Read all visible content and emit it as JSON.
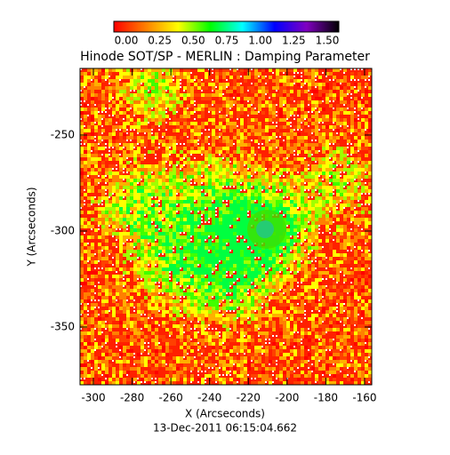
{
  "chart_data": {
    "type": "image",
    "title": "Hinode SOT/SP - MERLIN : Damping Parameter",
    "xlabel": "X (Arcseconds)",
    "ylabel": "Y (Arcseconds)",
    "footer": "13-Dec-2011 06:15:04.662",
    "xlim": [
      -306.9,
      -156.3
    ],
    "xticks": [
      -300,
      -280,
      -260,
      -240,
      -220,
      -200,
      -180,
      -160
    ],
    "ylim": [
      -380.1,
      -215.3
    ],
    "yticks": [
      -250,
      -300,
      -350
    ],
    "colorbar": {
      "lim": [
        0,
        1.5
      ],
      "colors": [
        "#ff0000",
        "#ff8000",
        "#ffff00",
        "#00ff00",
        "#00ffff",
        "#0000ff",
        "#8000c0",
        "#000000"
      ],
      "ticks": [
        {
          "value": 0,
          "label": "0.00"
        },
        {
          "value": 0.25,
          "label": "0.25"
        },
        {
          "value": 0.5,
          "label": "0.50"
        },
        {
          "value": 0.75,
          "label": "0.75"
        },
        {
          "value": 1,
          "label": "1.00"
        },
        {
          "value": 1.25,
          "label": "1.25"
        },
        {
          "value": 1.5,
          "label": "1.50"
        }
      ]
    }
  }
}
